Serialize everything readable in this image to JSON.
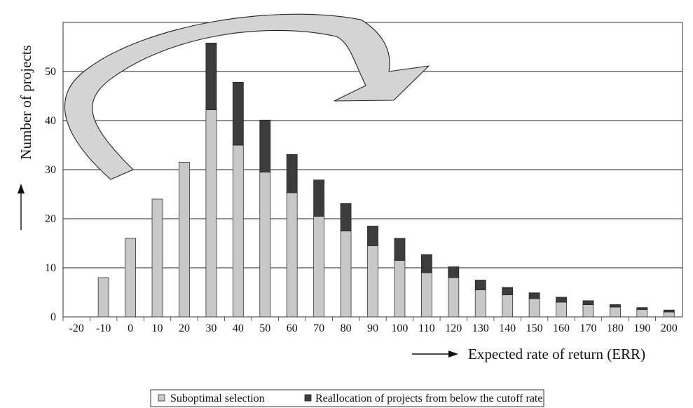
{
  "chart_data": {
    "type": "bar",
    "stacked": true,
    "xlabel": "Expected rate of return (ERR)",
    "ylabel": "Number of projects",
    "ylim": [
      0,
      60
    ],
    "yticks": [
      "0",
      "10",
      "20",
      "30",
      "40",
      "50"
    ],
    "grid": "horizontal",
    "legend_position": "bottom",
    "categories": [
      "-20",
      "-10",
      "0",
      "10",
      "20",
      "30",
      "40",
      "50",
      "60",
      "70",
      "80",
      "90",
      "100",
      "110",
      "120",
      "130",
      "140",
      "150",
      "160",
      "170",
      "180",
      "190",
      "200"
    ],
    "series": [
      {
        "name": "Suboptimal selection",
        "color": "#c8c8c8",
        "values": [
          0,
          8,
          16,
          24,
          31.5,
          42.2,
          35,
          29.5,
          25.3,
          20.5,
          17.5,
          14.5,
          11.5,
          9,
          8,
          5.5,
          4.5,
          3.7,
          3,
          2.5,
          2,
          1.5,
          1
        ]
      },
      {
        "name": "Reallocation of projects from below the cutoff rate",
        "color": "#3c3c3c",
        "values": [
          0,
          0,
          0,
          0,
          0,
          13.6,
          12.8,
          10.6,
          7.8,
          7.4,
          5.6,
          4,
          4.5,
          3.7,
          2.2,
          2,
          1.5,
          1.2,
          1,
          0.8,
          0.5,
          0.4,
          0.4
        ]
      }
    ],
    "annotation": "curved arrow from the bars below the cutoff to the upper ERR range"
  },
  "icons": {
    "y_arrow": "up-arrow-icon",
    "x_arrow": "right-arrow-icon",
    "curved_arrow": "curved-arrow-icon"
  }
}
